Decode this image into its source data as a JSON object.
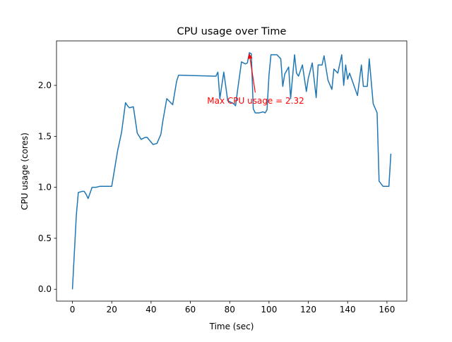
{
  "chart_data": {
    "type": "line",
    "title": "CPU usage over Time",
    "xlabel": "Time (sec)",
    "ylabel": "CPU usage (cores)",
    "xlim": [
      -8.1,
      170.1
    ],
    "ylim": [
      -0.116,
      2.436
    ],
    "xticks": [
      0,
      20,
      40,
      60,
      80,
      100,
      120,
      140,
      160
    ],
    "yticks": [
      0.0,
      0.5,
      1.0,
      1.5,
      2.0
    ],
    "ytick_labels": [
      "0.0",
      "0.5",
      "1.0",
      "1.5",
      "2.0"
    ],
    "grid": false,
    "line_color": "#1f77b4",
    "annotation": {
      "text": "Max CPU usage = 2.32",
      "color": "#ff0000",
      "point": [
        90,
        2.31
      ],
      "text_anchor": [
        93,
        1.93
      ]
    },
    "series": [
      {
        "x": [
          0,
          2,
          3,
          5,
          6,
          7,
          8,
          10,
          12,
          14,
          16,
          18,
          20,
          23,
          25,
          27,
          28,
          29,
          31,
          33,
          35,
          37,
          38,
          41,
          43,
          45,
          46,
          48,
          51,
          53,
          54,
          72,
          73,
          74,
          75,
          77,
          79,
          80,
          82,
          83,
          84,
          86,
          88,
          89,
          90,
          91,
          92,
          93,
          95,
          97,
          98,
          99,
          100,
          101,
          102,
          104,
          106,
          107,
          108,
          110,
          111,
          113,
          114,
          115,
          117,
          119,
          120,
          122,
          124,
          125,
          127,
          128,
          130,
          132,
          133,
          135,
          137,
          138,
          139,
          140,
          141,
          143,
          145,
          147,
          148,
          150,
          151,
          153,
          155,
          156,
          158,
          159,
          161,
          162
        ],
        "y": [
          0.0,
          0.73,
          0.95,
          0.96,
          0.96,
          0.93,
          0.89,
          1.0,
          1.0,
          1.01,
          1.01,
          1.01,
          1.01,
          1.36,
          1.54,
          1.83,
          1.8,
          1.78,
          1.79,
          1.53,
          1.47,
          1.49,
          1.49,
          1.42,
          1.43,
          1.52,
          1.65,
          1.87,
          1.81,
          2.04,
          2.1,
          2.09,
          2.09,
          2.13,
          1.87,
          2.13,
          1.85,
          1.84,
          1.82,
          1.8,
          1.95,
          2.23,
          2.21,
          2.22,
          2.32,
          2.31,
          1.77,
          1.73,
          1.73,
          1.74,
          1.73,
          1.76,
          2.1,
          2.3,
          2.3,
          2.3,
          2.26,
          1.99,
          2.11,
          2.18,
          1.87,
          2.3,
          2.12,
          2.09,
          2.2,
          1.94,
          2.07,
          2.22,
          1.88,
          2.2,
          2.2,
          2.29,
          2.05,
          1.96,
          2.16,
          2.12,
          2.3,
          2.0,
          2.2,
          2.06,
          2.12,
          2.01,
          1.9,
          2.2,
          1.99,
          1.99,
          2.26,
          1.82,
          1.73,
          1.06,
          1.01,
          1.01,
          1.01,
          1.33
        ]
      }
    ]
  }
}
